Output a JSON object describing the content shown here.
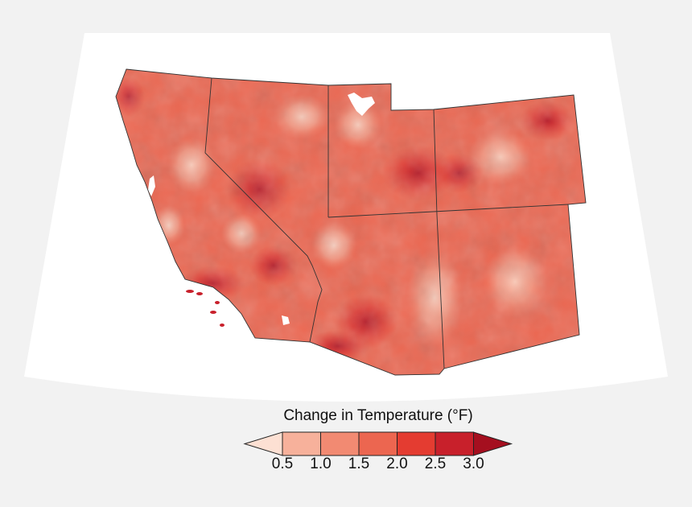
{
  "legend": {
    "title": "Change in Temperature (°F)",
    "ticks": [
      "0.5",
      "1.0",
      "1.5",
      "2.0",
      "2.5",
      "3.0"
    ],
    "colors": [
      "#fde0d3",
      "#f7b19b",
      "#f28a72",
      "#ec6650",
      "#e43c31",
      "#c8202b",
      "#a50f1f"
    ]
  },
  "map": {
    "region": "Southwest United States",
    "states": [
      "California",
      "Nevada",
      "Utah",
      "Colorado",
      "Arizona",
      "New Mexico"
    ],
    "base_color": "#ec6650"
  }
}
